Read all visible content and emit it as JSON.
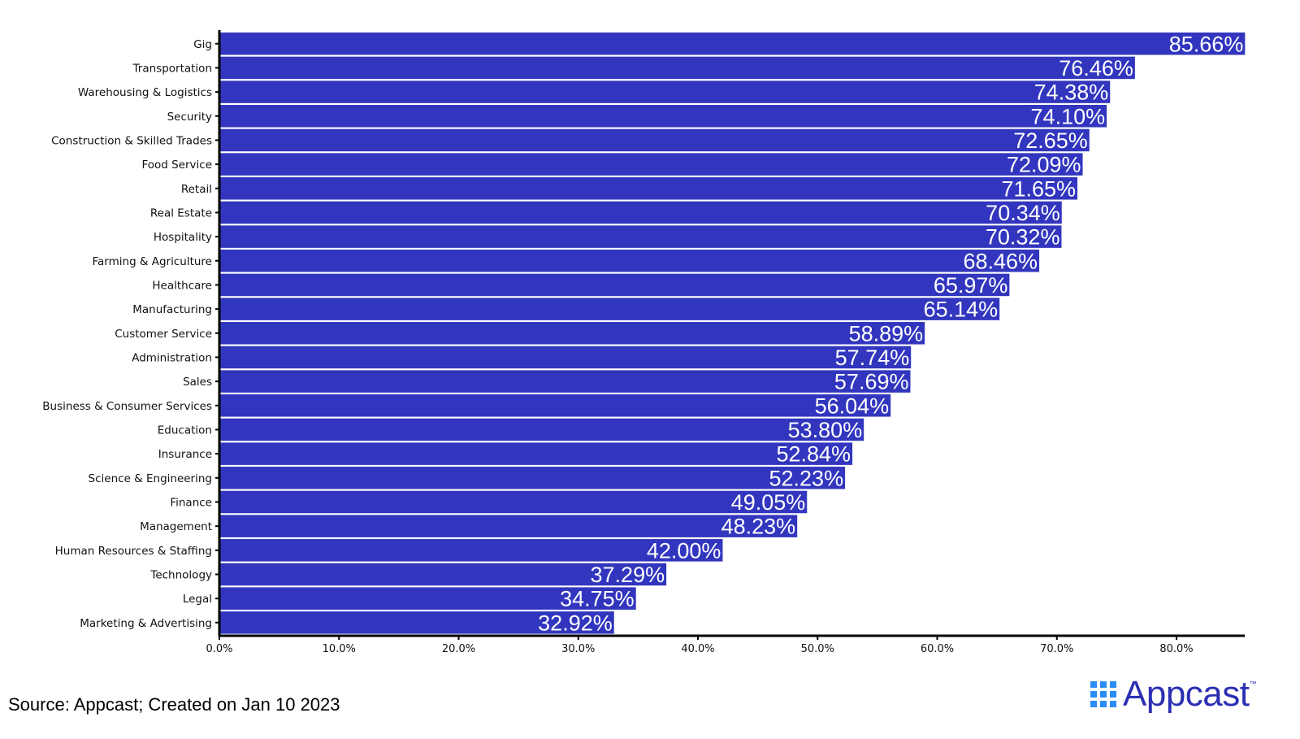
{
  "chart_data": {
    "type": "bar",
    "orientation": "horizontal",
    "title": "",
    "xlabel": "",
    "ylabel": "",
    "xlim": [
      0,
      85.66
    ],
    "grid": false,
    "bar_color": "#3236BE",
    "categories": [
      "Gig",
      "Transportation",
      "Warehousing & Logistics",
      "Security",
      "Construction & Skilled Trades",
      "Food Service",
      "Retail",
      "Real Estate",
      "Hospitality",
      "Farming & Agriculture",
      "Healthcare",
      "Manufacturing",
      "Customer Service",
      "Administration",
      "Sales",
      "Business & Consumer Services",
      "Education",
      "Insurance",
      "Science & Engineering",
      "Finance",
      "Management",
      "Human Resources & Staffing",
      "Technology",
      "Legal",
      "Marketing & Advertising"
    ],
    "values": [
      85.66,
      76.46,
      74.38,
      74.1,
      72.65,
      72.09,
      71.65,
      70.34,
      70.32,
      68.46,
      65.97,
      65.14,
      58.89,
      57.74,
      57.69,
      56.04,
      53.8,
      52.84,
      52.23,
      49.05,
      48.23,
      42.0,
      37.29,
      34.75,
      32.92
    ],
    "data_labels": [
      "85.66%",
      "76.46%",
      "74.38%",
      "74.10%",
      "72.65%",
      "72.09%",
      "71.65%",
      "70.34%",
      "70.32%",
      "68.46%",
      "65.97%",
      "65.14%",
      "58.89%",
      "57.74%",
      "57.69%",
      "56.04%",
      "53.80%",
      "52.84%",
      "52.23%",
      "49.05%",
      "48.23%",
      "42.00%",
      "37.29%",
      "34.75%",
      "32.92%"
    ],
    "x_ticks": [
      0,
      10,
      20,
      30,
      40,
      50,
      60,
      70,
      80
    ],
    "x_tick_labels": [
      "0.0%",
      "10.0%",
      "20.0%",
      "30.0%",
      "40.0%",
      "50.0%",
      "60.0%",
      "70.0%",
      "80.0%"
    ]
  },
  "footer": {
    "source": "Source: Appcast; Created on Jan 10 2023",
    "logo_text": "Appcast",
    "logo_tm": "™"
  }
}
